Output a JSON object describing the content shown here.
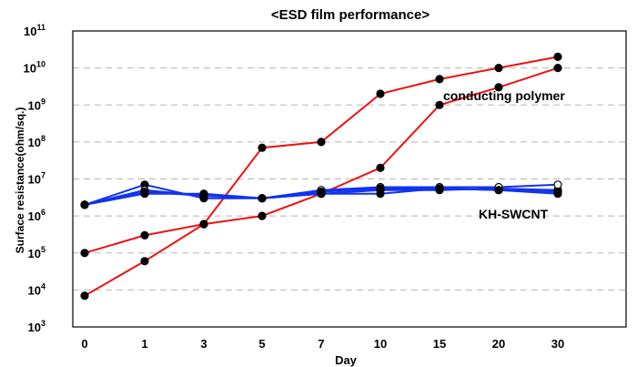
{
  "chart_data": {
    "type": "line",
    "title": "<ESD film performance>",
    "xlabel": "Day",
    "ylabel": "Surface resistance(ohm/sq.)",
    "x_categories": [
      "0",
      "1",
      "3",
      "5",
      "7",
      "10",
      "15",
      "20",
      "30"
    ],
    "y_scale": "log",
    "ylim": [
      1000,
      100000000000
    ],
    "y_ticks": [
      {
        "base": "10",
        "exp": "3",
        "value": 1000
      },
      {
        "base": "10",
        "exp": "4",
        "value": 10000
      },
      {
        "base": "10",
        "exp": "5",
        "value": 100000
      },
      {
        "base": "10",
        "exp": "6",
        "value": 1000000
      },
      {
        "base": "10",
        "exp": "7",
        "value": 10000000
      },
      {
        "base": "10",
        "exp": "8",
        "value": 100000000
      },
      {
        "base": "10",
        "exp": "9",
        "value": 1000000000
      },
      {
        "base": "10",
        "exp": "10",
        "value": 10000000000
      },
      {
        "base": "10",
        "exp": "11",
        "value": 100000000000
      }
    ],
    "grid": true,
    "annotations": [
      {
        "text": "conducting polymer",
        "near_series": "red"
      },
      {
        "text": "KH-SWCNT",
        "near_series": "blue"
      }
    ],
    "series": [
      {
        "group": "red",
        "color": "#ee1111",
        "marker": "filled",
        "values": [
          7000,
          60000,
          600000,
          70000000,
          100000000,
          2000000000,
          5000000000,
          10000000000,
          20000000000
        ]
      },
      {
        "group": "red",
        "color": "#ee1111",
        "marker": "filled",
        "values": [
          100000,
          300000,
          600000,
          1000000,
          4000000,
          20000000,
          1000000000,
          3000000000,
          10000000000
        ]
      },
      {
        "group": "blue",
        "color": "#1133ee",
        "marker": "filled",
        "values": [
          2000000,
          7000000,
          3000000,
          3000000,
          4000000,
          4000000,
          5500000,
          5000000,
          4000000
        ]
      },
      {
        "group": "blue",
        "color": "#1133ee",
        "marker": "filled",
        "values": [
          2000000,
          4000000,
          4000000,
          3000000,
          4000000,
          5000000,
          5000000,
          5500000,
          5000000
        ]
      },
      {
        "group": "blue",
        "color": "#1133ee",
        "marker": "open",
        "values": [
          2000000,
          5000000,
          3500000,
          3000000,
          5000000,
          6000000,
          6000000,
          6000000,
          7000000
        ]
      },
      {
        "group": "blue",
        "color": "#1133ee",
        "marker": "filled",
        "values": [
          2000000,
          4500000,
          3500000,
          3000000,
          4500000,
          5500000,
          5500000,
          5000000,
          4500000
        ]
      }
    ],
    "marker_colors": {
      "filled": "#000000",
      "open": "#ffffff",
      "stroke": "#000000"
    }
  }
}
